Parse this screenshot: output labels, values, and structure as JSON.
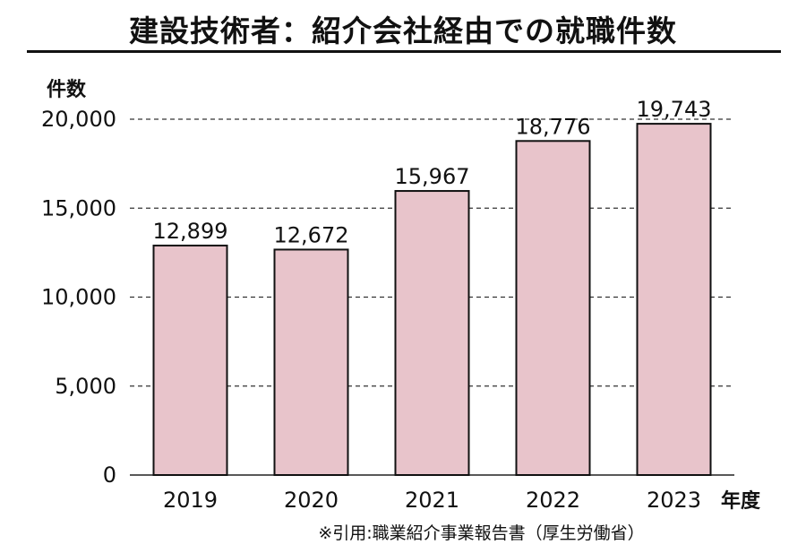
{
  "chart_data": {
    "type": "bar",
    "title": "建設技術者：紹介会社経由での就職件数",
    "ylabel": "件数",
    "xlabel": "年度",
    "categories": [
      "2019",
      "2020",
      "2021",
      "2022",
      "2023"
    ],
    "values": [
      12899,
      12672,
      15967,
      18776,
      19743
    ],
    "value_labels": [
      "12,899",
      "12,672",
      "15,967",
      "18,776",
      "19,743"
    ],
    "ylim": [
      0,
      20000
    ],
    "yticks": [
      0,
      5000,
      10000,
      15000,
      20000
    ],
    "ytick_labels": [
      "0",
      "5,000",
      "10,000",
      "15,000",
      "20,000"
    ],
    "grid": "dashed-horizontal",
    "bar_color": "#e8c4cb",
    "bar_edge_color": "#111111"
  },
  "source_note": "※引用:職業紹介事業報告書（厚生労働省）"
}
